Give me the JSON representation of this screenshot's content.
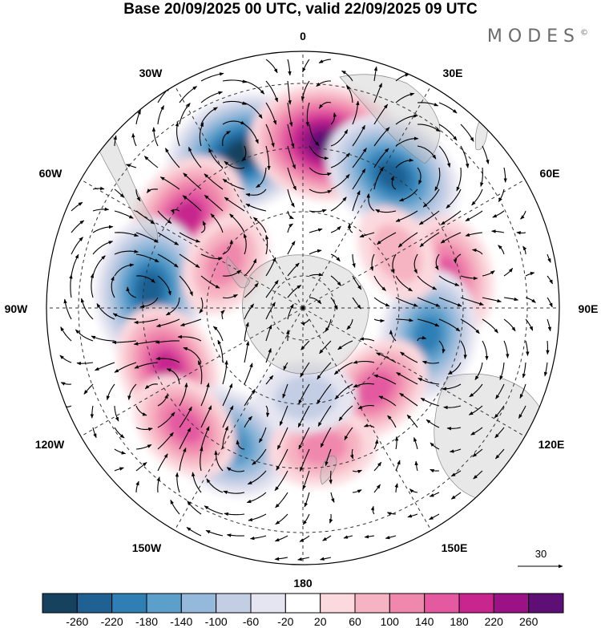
{
  "title": "Base 20/09/2025 00 UTC, valid 22/09/2025 09 UTC",
  "logo": "MODES",
  "logo_mark": "©",
  "longitude_labels": {
    "lon_0": "0",
    "lon_30e": "30E",
    "lon_60e": "60E",
    "lon_90e": "90E",
    "lon_120e": "120E",
    "lon_150e": "150E",
    "lon_180": "180",
    "lon_150w": "150W",
    "lon_120w": "120W",
    "lon_90w": "90W",
    "lon_60w": "60W",
    "lon_30w": "30W"
  },
  "vector_reference": "30",
  "colorbar": {
    "colors": [
      "#17425f",
      "#1f6192",
      "#2f7fb5",
      "#5c9fcb",
      "#94b9da",
      "#c3cde4",
      "#e5e5f1",
      "#ffffff",
      "#fbd9de",
      "#f6b3c2",
      "#f088ad",
      "#e35aa0",
      "#c8258f",
      "#9a1285",
      "#5e0f76"
    ],
    "ticks": [
      "-260",
      "-220",
      "-180",
      "-140",
      "-100",
      "-60",
      "-20",
      "20",
      "60",
      "100",
      "140",
      "180",
      "220",
      "260"
    ]
  },
  "anomaly_centers": [
    {
      "lon": -22,
      "lat": -38,
      "value": -250
    },
    {
      "lon": 8,
      "lat": -38,
      "value": 260
    },
    {
      "lon": 34,
      "lat": -40,
      "value": -220
    },
    {
      "lon": -52,
      "lat": -44,
      "value": 190
    },
    {
      "lon": -83,
      "lat": -42,
      "value": -230
    },
    {
      "lon": 78,
      "lat": -44,
      "value": 150
    },
    {
      "lon": 102,
      "lat": -50,
      "value": -170
    },
    {
      "lon": -114,
      "lat": -44,
      "value": 170
    },
    {
      "lon": 138,
      "lat": -56,
      "value": 120
    },
    {
      "lon": -150,
      "lat": -42,
      "value": -190
    },
    {
      "lon": -135,
      "lat": -38,
      "value": 120
    },
    {
      "lon": 172,
      "lat": -46,
      "value": 90
    },
    {
      "lon": 178,
      "lat": -62,
      "value": -60
    },
    {
      "lon": 60,
      "lat": -56,
      "value": 60
    },
    {
      "lon": -60,
      "lat": -62,
      "value": 90
    }
  ]
}
